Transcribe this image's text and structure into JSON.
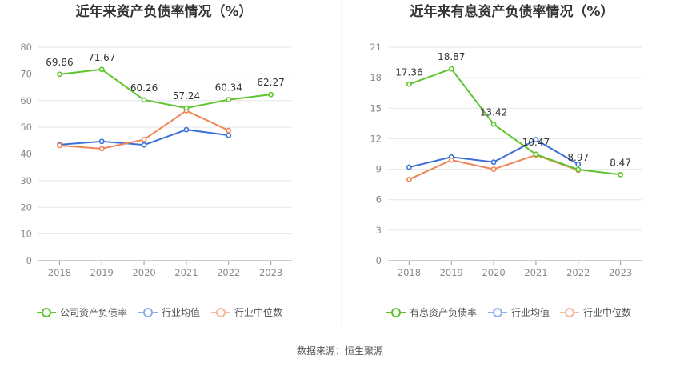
{
  "colors": {
    "company": "#5ec52d",
    "industry_avg": "#3a6fd8",
    "industry_median": "#f08557",
    "legend_avg": "#8fb0ee",
    "legend_median": "#f6b79a",
    "grid": "#e6e6e6",
    "axis": "#999999",
    "divider": "#eeeeee"
  },
  "source": "数据来源：恒生聚源",
  "chart_data": [
    {
      "type": "line",
      "title": "近年来资产负债率情况（%）",
      "categories": [
        "2018",
        "2019",
        "2020",
        "2021",
        "2022",
        "2023"
      ],
      "yticks": [
        "0",
        "10",
        "20",
        "30",
        "40",
        "50",
        "60",
        "70",
        "80"
      ],
      "ylim": [
        0,
        80
      ],
      "grid": true,
      "legend_position": "bottom",
      "series": [
        {
          "name": "公司资产负债率",
          "key": "company",
          "labeled": true,
          "values": [
            69.86,
            71.67,
            60.26,
            57.24,
            60.34,
            62.27
          ],
          "labels": [
            "69.86",
            "71.67",
            "60.26",
            "57.24",
            "60.34",
            "62.27"
          ]
        },
        {
          "name": "行业均值",
          "key": "industry_avg",
          "labeled": false,
          "values": [
            43.5,
            44.7,
            43.4,
            49.1,
            47.0,
            null
          ]
        },
        {
          "name": "行业中位数",
          "key": "industry_median",
          "labeled": false,
          "values": [
            43.2,
            42.0,
            45.4,
            56.2,
            48.8,
            null
          ]
        }
      ]
    },
    {
      "type": "line",
      "title": "近年来有息资产负债率情况（%）",
      "categories": [
        "2018",
        "2019",
        "2020",
        "2021",
        "2022",
        "2023"
      ],
      "yticks": [
        "0",
        "3",
        "6",
        "9",
        "12",
        "15",
        "18",
        "21"
      ],
      "ylim": [
        0,
        21
      ],
      "grid": true,
      "legend_position": "bottom",
      "series": [
        {
          "name": "有息资产负债率",
          "key": "company",
          "labeled": true,
          "values": [
            17.36,
            18.87,
            13.42,
            10.47,
            8.97,
            8.47
          ],
          "labels": [
            "17.36",
            "18.87",
            "13.42",
            "10.47",
            "8.97",
            "8.47"
          ]
        },
        {
          "name": "行业均值",
          "key": "industry_avg",
          "labeled": false,
          "values": [
            9.2,
            10.2,
            9.7,
            11.9,
            9.5,
            null
          ]
        },
        {
          "name": "行业中位数",
          "key": "industry_median",
          "labeled": false,
          "values": [
            8.0,
            9.9,
            9.0,
            10.4,
            8.9,
            null
          ]
        }
      ]
    }
  ]
}
